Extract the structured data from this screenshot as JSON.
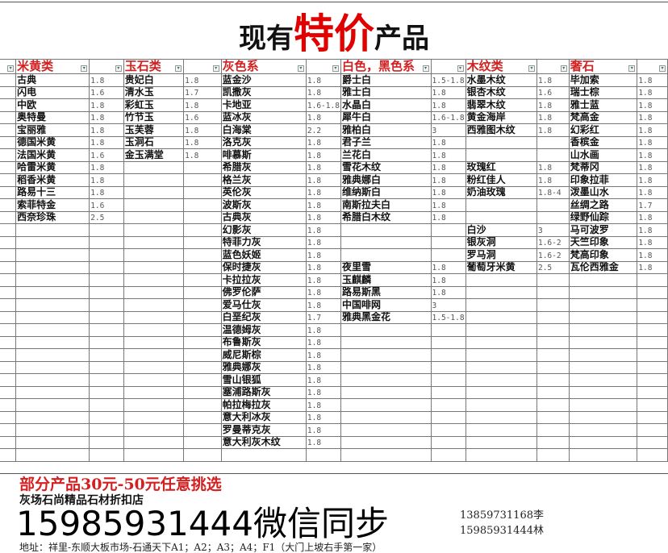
{
  "title": {
    "pre": "现有",
    "highlight": "特价",
    "post": "产品"
  },
  "colors": {
    "header": "#d42020",
    "highlight": "#e00000"
  },
  "categories": [
    "米黄类",
    "玉石类",
    "灰色系",
    "白色，黑色系",
    "木纹类",
    "奢石"
  ],
  "columns": [
    [
      [
        "古典",
        "1.8"
      ],
      [
        "闪电",
        "1.6"
      ],
      [
        "中欧",
        "1.8"
      ],
      [
        "奥特曼",
        "1.8"
      ],
      [
        "宝丽雅",
        "1.8"
      ],
      [
        "德国米黄",
        "1.8"
      ],
      [
        "法国米黄",
        "1.6"
      ],
      [
        "哈雷米黄",
        "1.8"
      ],
      [
        "稻香米黄",
        "1.8"
      ],
      [
        "路易十三",
        "1.8"
      ],
      [
        "索菲特金",
        "1.6"
      ],
      [
        "西奈珍珠",
        "2.5"
      ]
    ],
    [
      [
        "贵妃白",
        "1.8"
      ],
      [
        "清水玉",
        "1.7"
      ],
      [
        "彩虹玉",
        "1.8"
      ],
      [
        "竹节玉",
        "1.6"
      ],
      [
        "玉芙蓉",
        "1.8"
      ],
      [
        "玉洞石",
        "1.8"
      ],
      [
        "金玉满堂",
        "1.8"
      ]
    ],
    [
      [
        "蓝金沙",
        "1.8"
      ],
      [
        "凯撒灰",
        "1.8"
      ],
      [
        "卡地亚",
        "1.6-1.8"
      ],
      [
        "蓝冰灰",
        "1.8"
      ],
      [
        "白海棠",
        "2.2"
      ],
      [
        "洛克灰",
        "1.8"
      ],
      [
        "啡慕斯",
        "1.8"
      ],
      [
        "希腊灰",
        "1.8"
      ],
      [
        "格兰灰",
        "1.8"
      ],
      [
        "英伦灰",
        "1.8"
      ],
      [
        "波斯灰",
        "1.8"
      ],
      [
        "古典灰",
        "1.8"
      ],
      [
        "幻影灰",
        "1.8"
      ],
      [
        "特菲力灰",
        "1.8"
      ],
      [
        "蓝色妖姬",
        "1.8"
      ],
      [
        "保时捷灰",
        "1.8"
      ],
      [
        "卡拉拉灰",
        "1.8"
      ],
      [
        "佛罗伦萨",
        "1.8"
      ],
      [
        "爱马仕灰",
        "1.8"
      ],
      [
        "白垩纪灰",
        "1.7"
      ],
      [
        "温德姆灰",
        "1.8"
      ],
      [
        "布鲁斯灰",
        "1.8"
      ],
      [
        "威尼斯棕",
        "1.8"
      ],
      [
        "雅典娜灰",
        "1.8"
      ],
      [
        "雪山银狐",
        "1.8"
      ],
      [
        "塞浦路斯灰",
        "1.8"
      ],
      [
        "帕拉梅拉灰",
        "1.8"
      ],
      [
        "意大利冰灰",
        "1.8"
      ],
      [
        "罗曼蒂克灰",
        "1.8"
      ],
      [
        "意大利灰木纹",
        "1.8"
      ]
    ],
    [
      [
        "爵士白",
        "1.5-1.8"
      ],
      [
        "雅士白",
        "1.8"
      ],
      [
        "水晶白",
        "1.8"
      ],
      [
        "犀牛白",
        "1.6-1.8"
      ],
      [
        "雅柏白",
        "3"
      ],
      [
        "君子兰",
        "1.8"
      ],
      [
        "兰花白",
        "1.8"
      ],
      [
        "雪花木纹",
        "1.8"
      ],
      [
        "雅典娜白",
        "1.8"
      ],
      [
        "维纳斯白",
        "1.8"
      ],
      [
        "南斯拉夫白",
        "1.8"
      ],
      [
        "希腊白木纹",
        "1.8"
      ],
      null,
      null,
      null,
      [
        "夜里雪",
        "1.8"
      ],
      [
        "玉麒麟",
        "1.8"
      ],
      [
        "路易斯黑",
        "1.8"
      ],
      [
        "中国啡网",
        "3"
      ],
      [
        "雅典黑金花",
        "1.5-1.8"
      ]
    ],
    [
      [
        "水墨木纹",
        "1.8"
      ],
      [
        "银杏木纹",
        "1.6"
      ],
      [
        "翡翠木纹",
        "1.8"
      ],
      [
        "黄金海岸",
        "1.8"
      ],
      [
        "西雅图木纹",
        "1.8"
      ],
      null,
      null,
      [
        "玫瑰红",
        "1.8"
      ],
      [
        "粉红佳人",
        "1.8"
      ],
      [
        "奶油玫瑰",
        "1.8-4"
      ],
      null,
      null,
      [
        "白沙",
        "3"
      ],
      [
        "银灰洞",
        "1.6-2"
      ],
      [
        "罗马洞",
        "1.6-2"
      ],
      [
        "葡萄牙米黄",
        "2.5"
      ]
    ],
    [
      [
        "毕加索",
        "1.8"
      ],
      [
        "瑞士棕",
        "1.8"
      ],
      [
        "雅士蓝",
        "1.8"
      ],
      [
        "梵高金",
        "1.8"
      ],
      [
        "幻彩红",
        "1.8"
      ],
      [
        "香槟金",
        "1.8"
      ],
      [
        "山水画",
        "1.8"
      ],
      [
        "梵蒂冈",
        "1.8"
      ],
      [
        "印象拉菲",
        "1.8"
      ],
      [
        "泼墨山水",
        "1.8"
      ],
      [
        "丝绸之路",
        "1.7"
      ],
      [
        "绿野仙踪",
        "1.8"
      ],
      [
        "马可波罗",
        "1.8"
      ],
      [
        "天竺印象",
        "1.8"
      ],
      [
        "梵高印象",
        "1.8"
      ],
      [
        "瓦伦西雅金",
        "1.8"
      ]
    ]
  ],
  "footer": {
    "promo": "部分产品30元-50元任意挑选",
    "store": "灰场石尚精品石材折扣店",
    "phone": "15985931444微信同步",
    "contact1": "13859731168李",
    "contact2": "15985931444林",
    "address": "地址：祥里-东顺大板市场-石通天下A1；A2；A3；A4；F1（大门上坡右手第一家）"
  }
}
